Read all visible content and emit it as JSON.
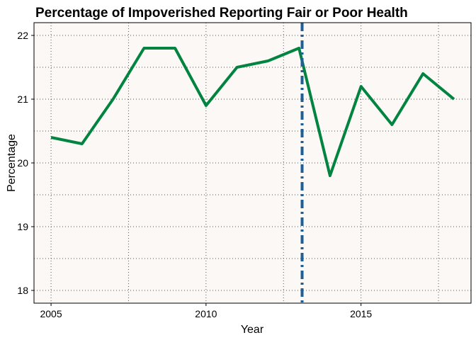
{
  "chart_data": {
    "type": "line",
    "title": "Percentage of Impoverished Reporting Fair or Poor Health",
    "xlabel": "Year",
    "ylabel": "Percentage",
    "x": [
      2005,
      2006,
      2007,
      2008,
      2009,
      2010,
      2011,
      2012,
      2013,
      2014,
      2015,
      2016,
      2017,
      2018
    ],
    "series": [
      {
        "values": [
          20.4,
          20.3,
          21.0,
          21.8,
          21.8,
          20.9,
          21.5,
          21.6,
          21.8,
          19.8,
          21.2,
          20.6,
          21.4,
          21.0
        ]
      }
    ],
    "xlim": [
      2004.45,
      2018.55
    ],
    "ylim": [
      17.8,
      22.2
    ],
    "x_ticks": [
      "2005",
      "2010",
      "2015"
    ],
    "y_ticks": [
      "18",
      "19",
      "20",
      "21",
      "22"
    ],
    "reference_line": {
      "x": 2013.1,
      "style": "dot-dash"
    },
    "grid": true,
    "legend": "none",
    "colors": {
      "line": "#00843F",
      "reference_line": "#1F5F99",
      "panel_background": "#FBF8F5",
      "grid": "#555555"
    }
  }
}
